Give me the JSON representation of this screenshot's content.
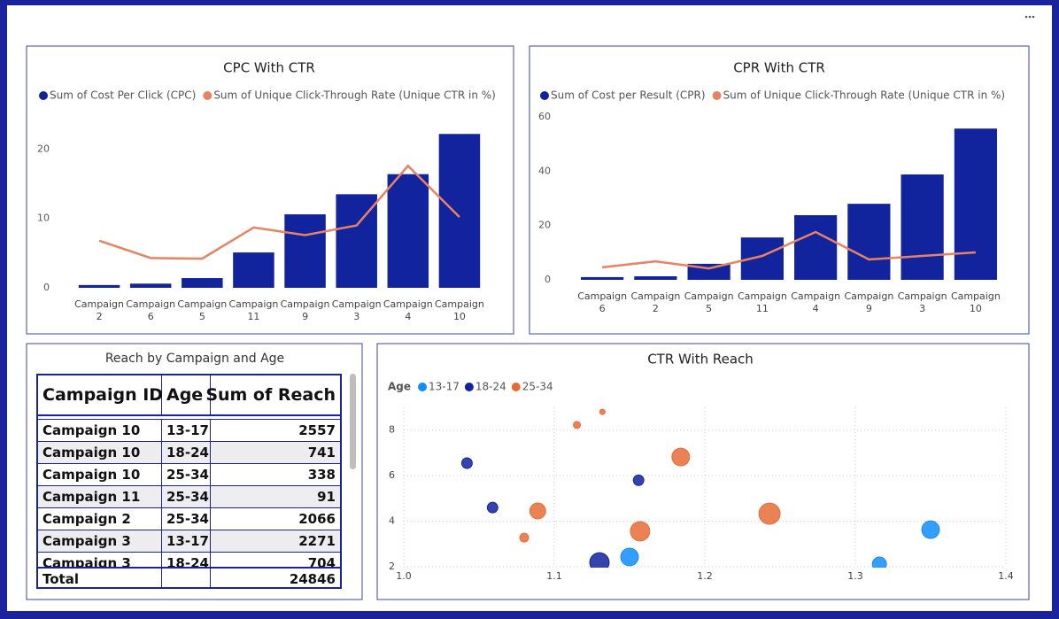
{
  "chart_data": [
    {
      "type": "combo",
      "title": "CPC With CTR",
      "categories": [
        "Campaign 2",
        "Campaign 6",
        "Campaign 5",
        "Campaign 11",
        "Campaign 9",
        "Campaign 3",
        "Campaign 4",
        "Campaign 10"
      ],
      "series": [
        {
          "name": "Sum of Cost Per Click (CPC)",
          "type": "bar",
          "color": "#12239E",
          "values": [
            0.4,
            0.6,
            1.4,
            5.1,
            10.6,
            13.5,
            16.4,
            22.2
          ]
        },
        {
          "name": "Sum of Unique Click-Through Rate (Unique CTR in %)",
          "type": "line",
          "color": "#E8825F",
          "values": [
            6.8,
            4.3,
            4.2,
            8.7,
            7.6,
            9.0,
            17.6,
            10.2
          ]
        }
      ],
      "ylim": [
        0,
        23
      ],
      "yticks": [
        0,
        10,
        20
      ],
      "grid": false
    },
    {
      "type": "combo",
      "title": "CPR With CTR",
      "categories": [
        "Campaign 6",
        "Campaign 2",
        "Campaign 5",
        "Campaign 11",
        "Campaign 4",
        "Campaign 9",
        "Campaign 3",
        "Campaign 10"
      ],
      "series": [
        {
          "name": "Sum of Cost per Result (CPR)",
          "type": "bar",
          "color": "#12239E",
          "values": [
            1.0,
            1.3,
            5.9,
            15.6,
            23.8,
            28.0,
            38.8,
            55.7
          ]
        },
        {
          "name": "Sum of Unique Click-Through Rate (Unique CTR in %)",
          "type": "line",
          "color": "#E8825F",
          "values": [
            4.6,
            6.8,
            4.2,
            8.8,
            17.6,
            7.5,
            8.8,
            10.1
          ]
        }
      ],
      "ylim": [
        0,
        60
      ],
      "yticks": [
        0,
        20,
        40,
        60
      ],
      "grid": false
    },
    {
      "type": "scatter",
      "title": "CTR With Reach",
      "legend_title": "Age",
      "series": [
        {
          "name": "13-17",
          "color": "#118DFF",
          "x": [
            1.15,
            1.35,
            1.316
          ],
          "y": [
            2.43,
            3.63,
            2.12
          ],
          "size": [
            2000,
            2000,
            1280
          ]
        },
        {
          "name": "18-24",
          "color": "#12239E",
          "x": [
            1.042,
            1.059,
            1.156,
            1.13
          ],
          "y": [
            6.55,
            4.6,
            5.8,
            2.19
          ],
          "size": [
            720,
            720,
            720,
            2420
          ]
        },
        {
          "name": "25-34",
          "color": "#E66C37",
          "x": [
            1.115,
            1.132,
            1.089,
            1.08,
            1.184,
            1.157,
            1.243
          ],
          "y": [
            8.23,
            8.8,
            4.45,
            3.28,
            6.82,
            3.56,
            4.33
          ],
          "size": [
            320,
            180,
            1620,
            500,
            2000,
            2420,
            2880
          ]
        }
      ],
      "xlim": [
        1,
        1.4
      ],
      "xticks": [
        {
          "value": 1,
          "label": "1.0"
        },
        1.1,
        1.2,
        1.3,
        1.4
      ],
      "ylim": [
        2,
        9
      ],
      "yticks": [
        2,
        4,
        6,
        8
      ],
      "grid": true
    }
  ],
  "table": {
    "title": "Reach by Campaign and Age",
    "columns": [
      "Campaign ID",
      "Age",
      "Sum of Reach"
    ],
    "rows": [
      [
        "Campaign 10",
        "13-17",
        2557
      ],
      [
        "Campaign 10",
        "18-24",
        741
      ],
      [
        "Campaign 10",
        "25-34",
        338
      ],
      [
        "Campaign 11",
        "25-34",
        91
      ],
      [
        "Campaign 2",
        "25-34",
        2066
      ],
      [
        "Campaign 3",
        "13-17",
        2271
      ],
      [
        "Campaign 3",
        "18-24",
        704
      ]
    ],
    "total": {
      "label": "Total",
      "value": 24846
    }
  }
}
